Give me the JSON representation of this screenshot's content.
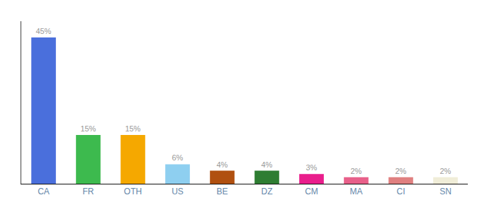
{
  "chart_data": {
    "type": "bar",
    "categories": [
      "CA",
      "FR",
      "OTH",
      "US",
      "BE",
      "DZ",
      "CM",
      "MA",
      "CI",
      "SN"
    ],
    "values": [
      45,
      15,
      15,
      6,
      4,
      4,
      3,
      2,
      2,
      2
    ],
    "value_labels": [
      "45%",
      "15%",
      "15%",
      "6%",
      "4%",
      "4%",
      "3%",
      "2%",
      "2%",
      "2%"
    ],
    "colors": [
      "#4a6fdc",
      "#3dba4e",
      "#f5a800",
      "#8ecff0",
      "#b05010",
      "#2e7d32",
      "#e91e8c",
      "#e8608a",
      "#e08080",
      "#f0edd8"
    ],
    "ylim": [
      0,
      50
    ],
    "grid": false,
    "data_labels": true,
    "tick_labels": "x"
  }
}
